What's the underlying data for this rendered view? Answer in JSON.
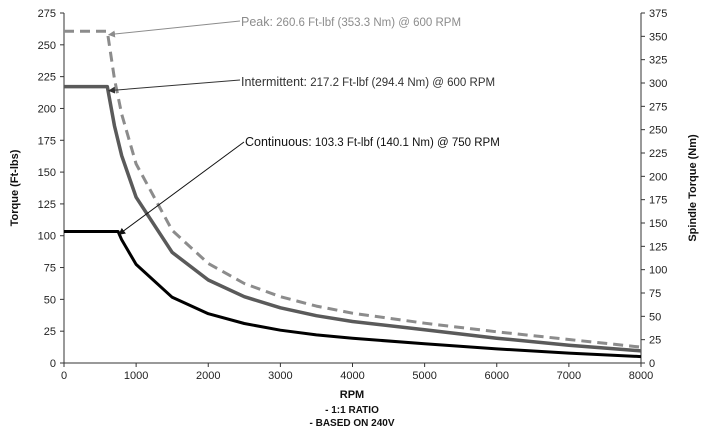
{
  "chart_data": {
    "type": "line",
    "xlabel": "RPM",
    "notes": [
      "- 1:1 RATIO",
      "- BASED ON 240V"
    ],
    "ylabel_left": "Torque (Ft-lbs)",
    "ylabel_right": "Spindle Torque (Nm)",
    "xlim": [
      0,
      8000
    ],
    "ylim_left": [
      0,
      275
    ],
    "ylim_right": [
      0,
      375
    ],
    "x_ticks": [
      "0",
      "1000",
      "2000",
      "3000",
      "4000",
      "5000",
      "6000",
      "7000",
      "8000"
    ],
    "y_left_ticks": [
      "0",
      "25",
      "50",
      "75",
      "100",
      "125",
      "150",
      "175",
      "200",
      "225",
      "250",
      "275"
    ],
    "y_right_ticks": [
      "0",
      "25",
      "50",
      "75",
      "100",
      "125",
      "150",
      "175",
      "200",
      "225",
      "250",
      "275",
      "300",
      "325",
      "350",
      "375"
    ],
    "grid": false,
    "legend": "none",
    "series": [
      {
        "key": "peak",
        "style": "dashed",
        "color": "#8c8c8c",
        "points": [
          [
            0,
            260.6
          ],
          [
            600,
            260.6
          ],
          [
            700,
            223
          ],
          [
            800,
            195.5
          ],
          [
            1000,
            156.4
          ],
          [
            1500,
            104.2
          ],
          [
            2000,
            78.2
          ],
          [
            2500,
            62.5
          ],
          [
            3000,
            52.1
          ],
          [
            3500,
            44.7
          ],
          [
            4000,
            39.1
          ],
          [
            5000,
            31.3
          ],
          [
            6000,
            24.5
          ],
          [
            7000,
            18.5
          ],
          [
            8000,
            12.5
          ]
        ]
      },
      {
        "key": "intermittent",
        "style": "solid",
        "color": "#5a5a5a",
        "points": [
          [
            0,
            217.2
          ],
          [
            600,
            217.2
          ],
          [
            700,
            186.2
          ],
          [
            800,
            162.9
          ],
          [
            1000,
            130.3
          ],
          [
            1500,
            86.9
          ],
          [
            2000,
            65.2
          ],
          [
            2500,
            52.1
          ],
          [
            3000,
            43.4
          ],
          [
            3500,
            37.2
          ],
          [
            4000,
            32.6
          ],
          [
            5000,
            26.1
          ],
          [
            6000,
            19.5
          ],
          [
            7000,
            14
          ],
          [
            8000,
            9.5
          ]
        ]
      },
      {
        "key": "continuous",
        "style": "solid",
        "color": "#000000",
        "points": [
          [
            0,
            103.3
          ],
          [
            750,
            103.3
          ],
          [
            800,
            96.8
          ],
          [
            1000,
            77.5
          ],
          [
            1500,
            51.6
          ],
          [
            2000,
            38.7
          ],
          [
            2500,
            31
          ],
          [
            3000,
            25.8
          ],
          [
            3500,
            22.1
          ],
          [
            4000,
            19.4
          ],
          [
            5000,
            15.2
          ],
          [
            6000,
            11.1
          ],
          [
            7000,
            7.8
          ],
          [
            8000,
            5
          ]
        ]
      }
    ],
    "annotations": [
      {
        "key": "peak",
        "lead": "Peak:",
        "text": " 260.6 Ft-lbf (353.3 Nm) @ 600 RPM",
        "color": "#8c8c8c",
        "target": [
          620,
          258
        ]
      },
      {
        "key": "intermittent",
        "lead": "Intermittent:",
        "text": " 217.2 Ft-lbf (294.4 Nm) @ 600 RPM",
        "color": "#333333",
        "target": [
          620,
          214
        ]
      },
      {
        "key": "continuous",
        "lead": "Continuous:",
        "text": " 103.3 Ft-lbf (140.1 Nm) @ 750 RPM",
        "color": "#111111",
        "target": [
          760,
          101
        ]
      }
    ]
  }
}
